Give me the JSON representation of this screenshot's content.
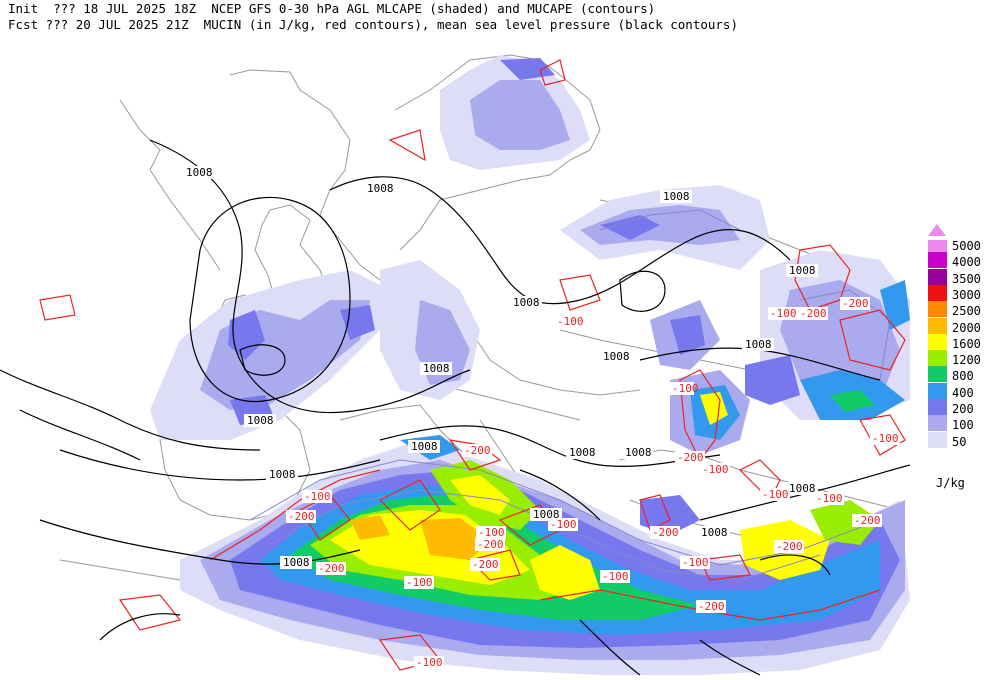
{
  "header": {
    "line1": "Init  ??? 18 JUL 2025 18Z  NCEP GFS 0-30 hPa AGL MLCAPE (shaded) and MUCAPE (contours)",
    "line2": "Fcst ??? 20 JUL 2025 21Z  MUCIN (in J/kg, red contours), mean sea level pressure (black contours)"
  },
  "legend": {
    "units": "J/kg",
    "levels": [
      {
        "label": "5000",
        "color": "#ee88ee"
      },
      {
        "label": "4000",
        "color": "#cc00cc"
      },
      {
        "label": "3500",
        "color": "#990099"
      },
      {
        "label": "3000",
        "color": "#ee1111"
      },
      {
        "label": "2500",
        "color": "#ff8800"
      },
      {
        "label": "2000",
        "color": "#ffbb00"
      },
      {
        "label": "1600",
        "color": "#ffff00"
      },
      {
        "label": "1200",
        "color": "#99ee00"
      },
      {
        "label": "800",
        "color": "#11cc66"
      },
      {
        "label": "400",
        "color": "#3399ee"
      },
      {
        "label": "200",
        "color": "#7777ee"
      },
      {
        "label": "100",
        "color": "#aaaaee"
      },
      {
        "label": "50",
        "color": "#ddddf7"
      }
    ],
    "top_color": "#ee88ee"
  },
  "map": {
    "pressure_labels": [
      "1008",
      "1008",
      "1008",
      "1008",
      "1008",
      "1008",
      "1008",
      "1008",
      "1008",
      "1008",
      "1008",
      "1008",
      "1008",
      "1008",
      "1008",
      "1008",
      "1008"
    ],
    "cin_labels": [
      "-100",
      "-200",
      "-100",
      "-200",
      "-100",
      "-200",
      "-100",
      "-200",
      "-100",
      "-200",
      "-100",
      "-200",
      "-100",
      "-200",
      "-100",
      "-200",
      "-100",
      "-200",
      "-100",
      "-200",
      "-100",
      "-200",
      "-100",
      "-200",
      "-100",
      "-100"
    ],
    "colors": {
      "pressure": "#000000",
      "cin": "#ee2222",
      "coast": "#999999",
      "mucape": "#8888cc"
    }
  }
}
